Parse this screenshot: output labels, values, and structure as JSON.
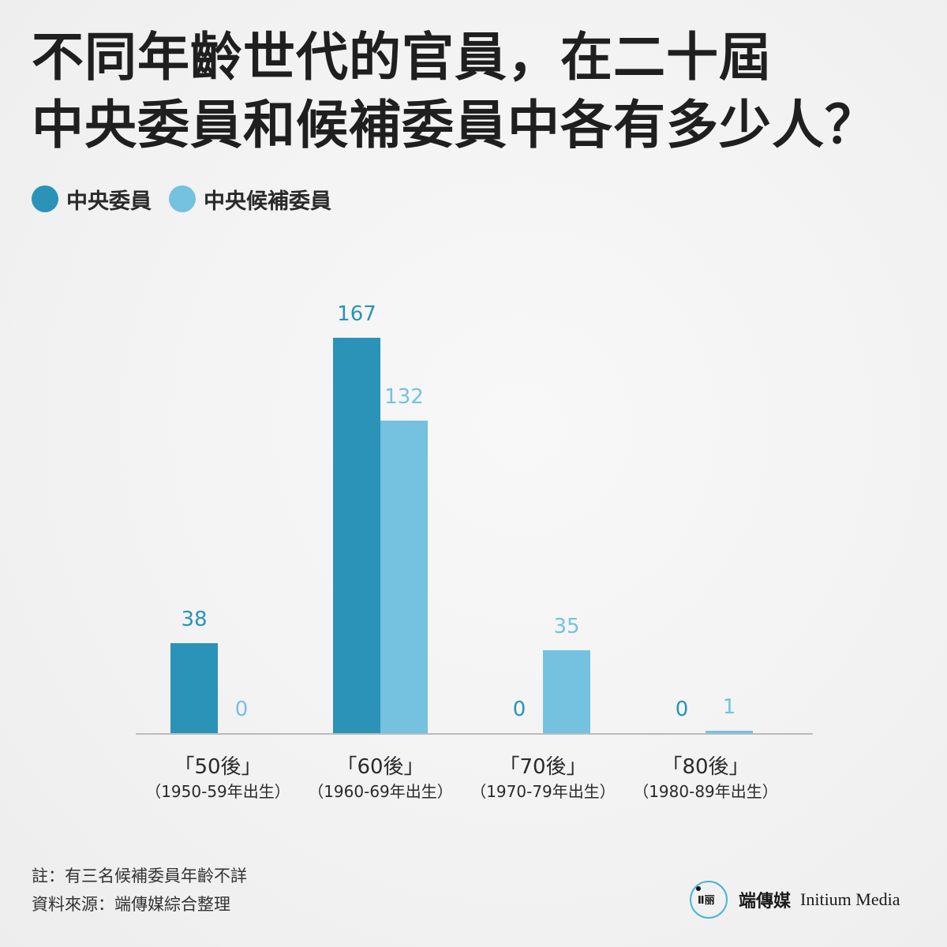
{
  "title_lines": [
    "不同年齡世代的官員，在二十屆",
    "中央委員和候補委員中各有多少人？"
  ],
  "colors": {
    "primary": "#2a93b7",
    "secondary": "#74c2e0",
    "axis": "#bbbbbb"
  },
  "legend": [
    {
      "label": "中央委員",
      "color": "#2a93b7"
    },
    {
      "label": "中央候補委員",
      "color": "#74c2e0"
    }
  ],
  "chart_data": {
    "type": "bar",
    "categories": [
      "「50後」",
      "「60後」",
      "「70後」",
      "「80後」"
    ],
    "category_sublabels": [
      "（1950-59年出生）",
      "（1960-69年出生）",
      "（1970-79年出生）",
      "（1980-89年出生）"
    ],
    "series": [
      {
        "name": "中央委員",
        "values": [
          38,
          167,
          0,
          0
        ]
      },
      {
        "name": "中央候補委員",
        "values": [
          0,
          132,
          35,
          1
        ]
      }
    ],
    "ylim": [
      0,
      167
    ],
    "grid": false,
    "legend_position": "top-left",
    "data_labels": true
  },
  "notes": [
    "註：有三名候補委員年齡不詳",
    "資料來源：端傳媒綜合整理"
  ],
  "brand": {
    "logo_mark": "Ⅱ丽",
    "name_cn": "端傳媒",
    "name_en": "Initium Media"
  }
}
